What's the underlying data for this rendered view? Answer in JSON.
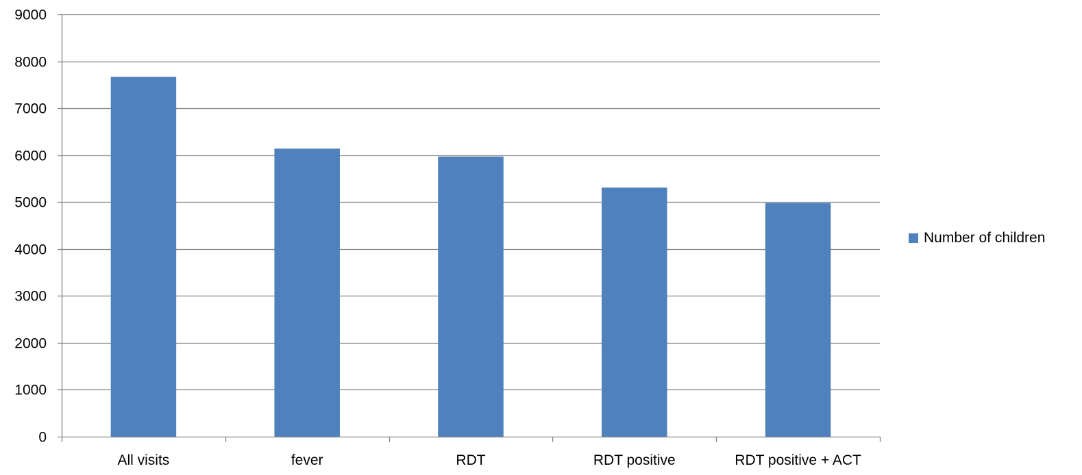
{
  "chart_data": {
    "type": "bar",
    "categories": [
      "All visits",
      "fever",
      "RDT",
      "RDT positive",
      "RDT positive + ACT"
    ],
    "series": [
      {
        "name": "Number of children",
        "values": [
          7670,
          6140,
          5970,
          5310,
          4980
        ],
        "color": "#4F81BD"
      }
    ],
    "ylim": [
      0,
      9000
    ],
    "ytick_step": 1000,
    "yticks": [
      "0",
      "1000",
      "2000",
      "3000",
      "4000",
      "5000",
      "6000",
      "7000",
      "8000",
      "9000"
    ],
    "grid": true,
    "legend_position": "right"
  }
}
